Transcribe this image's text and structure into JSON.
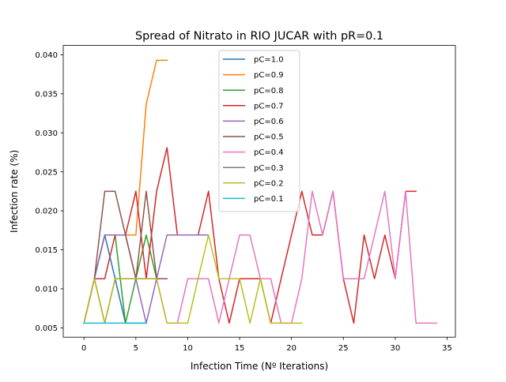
{
  "chart_data": {
    "type": "line",
    "title": "Spread of Nitrato in RIO JUCAR with pR=0.1",
    "xlabel": "Infection Time (Nº Iterations)",
    "ylabel": "Infection rate (%)",
    "xlim": [
      -2.0,
      35.8
    ],
    "ylim": [
      0.0038,
      0.0412
    ],
    "xticks": [
      0,
      5,
      10,
      15,
      20,
      25,
      30,
      35
    ],
    "xtick_labels": [
      "0",
      "5",
      "10",
      "15",
      "20",
      "25",
      "30",
      "35"
    ],
    "yticks": [
      0.005,
      0.01,
      0.015,
      0.02,
      0.025,
      0.03,
      0.035,
      0.04
    ],
    "ytick_labels": [
      "0.005",
      "0.010",
      "0.015",
      "0.020",
      "0.025",
      "0.030",
      "0.035",
      "0.040"
    ],
    "grid": false,
    "legend_position": "upper center",
    "series": [
      {
        "name": "pC=1.0",
        "color": "#1f77b4",
        "x": [
          0,
          1,
          2,
          3,
          4,
          5,
          6
        ],
        "y": [
          0.0056,
          0.0113,
          0.0169,
          0.0113,
          0.0056,
          0.0056,
          0.0056
        ]
      },
      {
        "name": "pC=0.9",
        "color": "#ff7f0e",
        "x": [
          0,
          1,
          2,
          3,
          4,
          5,
          6,
          7,
          8
        ],
        "y": [
          0.0056,
          0.0113,
          0.0169,
          0.0169,
          0.0169,
          0.0169,
          0.0337,
          0.0393,
          0.0393
        ]
      },
      {
        "name": "pC=0.8",
        "color": "#2ca02c",
        "x": [
          0,
          1,
          2,
          3,
          4,
          5,
          6,
          7
        ],
        "y": [
          0.0056,
          0.0113,
          0.0169,
          0.0169,
          0.0056,
          0.0113,
          0.0169,
          0.0113
        ]
      },
      {
        "name": "pC=0.7",
        "color": "#d62728",
        "x": [
          0,
          1,
          2,
          3,
          4,
          5,
          6,
          7,
          8,
          9,
          10,
          11,
          12,
          13,
          14,
          15,
          16,
          17,
          18,
          19,
          20,
          21,
          22,
          23,
          24,
          25,
          26,
          27,
          28,
          29,
          30,
          31,
          32
        ],
        "y": [
          0.0056,
          0.0113,
          0.0113,
          0.0169,
          0.0169,
          0.0225,
          0.0113,
          0.0225,
          0.0281,
          0.0169,
          0.0169,
          0.0169,
          0.0225,
          0.0113,
          0.0056,
          0.0113,
          0.0113,
          0.0113,
          0.0056,
          0.0113,
          0.0169,
          0.0225,
          0.0169,
          0.0169,
          0.0225,
          0.0113,
          0.0056,
          0.0169,
          0.0113,
          0.0169,
          0.0113,
          0.0225,
          0.0225
        ]
      },
      {
        "name": "pC=0.6",
        "color": "#9467bd",
        "x": [
          0,
          1,
          2,
          3,
          4,
          5,
          6,
          7,
          8,
          9,
          10,
          11,
          12
        ],
        "y": [
          0.0056,
          0.0113,
          0.0169,
          0.0169,
          0.0169,
          0.0113,
          0.0056,
          0.0113,
          0.0169,
          0.0169,
          0.0169,
          0.0169,
          0.0169
        ]
      },
      {
        "name": "pC=0.5",
        "color": "#8c564b",
        "x": [
          0,
          1,
          2,
          3,
          4,
          5,
          6,
          7,
          8
        ],
        "y": [
          0.0056,
          0.0113,
          0.0225,
          0.0225,
          0.0169,
          0.0113,
          0.0225,
          0.0113,
          0.0113
        ]
      },
      {
        "name": "pC=0.4",
        "color": "#e377c2",
        "x": [
          0,
          1,
          2,
          3,
          4,
          5,
          6,
          7,
          8,
          9,
          10,
          11,
          12,
          13,
          14,
          15,
          16,
          17,
          18,
          19,
          20,
          21,
          22,
          23,
          24,
          25,
          26,
          27,
          28,
          29,
          30,
          31,
          32,
          33,
          34
        ],
        "y": [
          0.0056,
          0.0113,
          0.0056,
          0.0113,
          0.0113,
          0.0113,
          0.0113,
          0.0113,
          0.0056,
          0.0056,
          0.0113,
          0.0113,
          0.0113,
          0.0056,
          0.0113,
          0.0169,
          0.0169,
          0.0113,
          0.0113,
          0.0056,
          0.0056,
          0.0113,
          0.0225,
          0.0169,
          0.0225,
          0.0113,
          0.0113,
          0.0113,
          0.0169,
          0.0225,
          0.0113,
          0.0225,
          0.0056,
          0.0056,
          0.0056
        ]
      },
      {
        "name": "pC=0.3",
        "color": "#7f7f7f",
        "x": [
          0,
          1,
          2,
          3,
          4,
          5,
          6,
          7
        ],
        "y": [
          0.0056,
          0.0113,
          0.0056,
          0.0113,
          0.0113,
          0.0113,
          0.0113,
          0.0113
        ]
      },
      {
        "name": "pC=0.2",
        "color": "#bcbd22",
        "x": [
          0,
          1,
          2,
          3,
          4,
          5,
          6,
          7,
          8,
          9,
          10,
          11,
          12,
          13,
          14,
          15,
          16,
          17,
          18,
          19,
          20,
          21
        ],
        "y": [
          0.0056,
          0.0113,
          0.0056,
          0.0113,
          0.0113,
          0.0113,
          0.0113,
          0.0113,
          0.0056,
          0.0056,
          0.0056,
          0.0113,
          0.0169,
          0.0113,
          0.0113,
          0.0113,
          0.0056,
          0.0113,
          0.0056,
          0.0056,
          0.0056,
          0.0056
        ]
      },
      {
        "name": "pC=0.1",
        "color": "#17becf",
        "x": [
          0,
          1,
          2,
          3,
          4,
          5,
          6
        ],
        "y": [
          0.0056,
          0.0056,
          0.0056,
          0.0056,
          0.0056,
          0.0056,
          0.0056
        ]
      }
    ]
  }
}
